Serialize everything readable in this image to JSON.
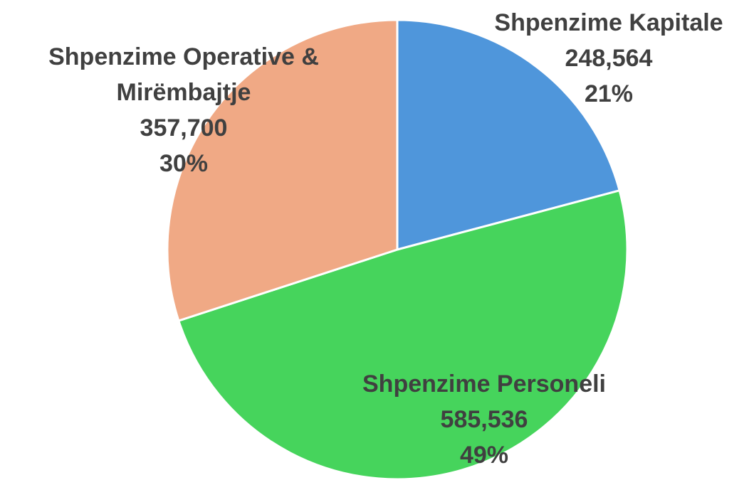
{
  "chart_data": {
    "type": "pie",
    "categories": [
      "Shpenzime Kapitale",
      "Shpenzime Personeli",
      "Shpenzime Operative & Mirëmbajtje"
    ],
    "values": [
      248564,
      585536,
      357700
    ],
    "value_labels": [
      "248,564",
      "585,536",
      "357,700"
    ],
    "percents": [
      21,
      49,
      30
    ],
    "percent_labels": [
      "21%",
      "49%",
      "30%"
    ],
    "colors": [
      "#4f96db",
      "#46d45c",
      "#f0a985"
    ]
  }
}
